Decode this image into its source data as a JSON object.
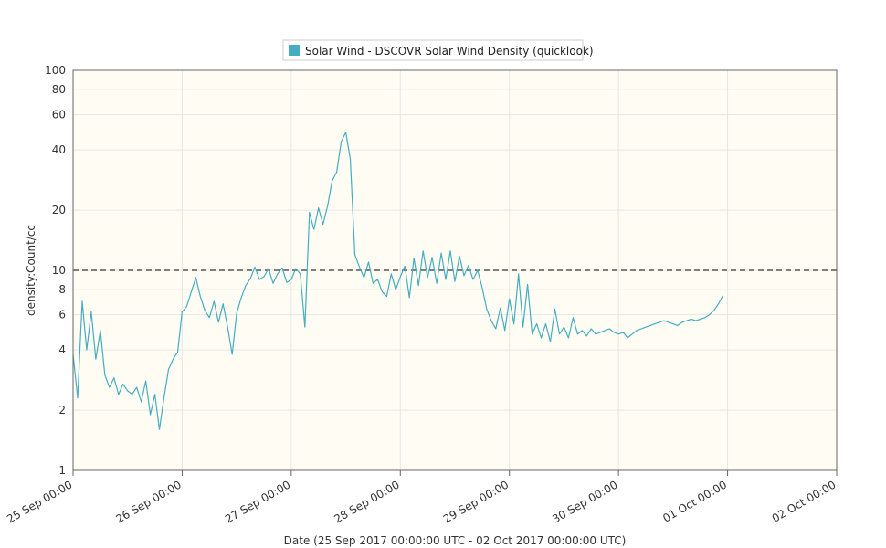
{
  "chart_data": {
    "type": "line",
    "title": "",
    "xlabel": "Date (25 Sep 2017 00:00:00 UTC - 02 Oct 2017 00:00:00 UTC)",
    "ylabel": "density:Count/cc",
    "yscale": "log",
    "ylim": [
      1,
      100
    ],
    "xlim": [
      "2017-09-25T00:00",
      "2017-10-02T00:00"
    ],
    "x_tick_labels": [
      "25 Sep 00:00",
      "26 Sep 00:00",
      "27 Sep 00:00",
      "28 Sep 00:00",
      "29 Sep 00:00",
      "30 Sep 00:00",
      "01 Oct 00:00",
      "02 Oct 00:00"
    ],
    "y_ticks": [
      1,
      2,
      4,
      6,
      8,
      10,
      20,
      40,
      60,
      80,
      100
    ],
    "y_tick_labels": [
      "1",
      "2",
      "4",
      "6",
      "8",
      "10",
      "20",
      "40",
      "60",
      "80",
      "100"
    ],
    "reference_lines": [
      10,
      1
    ],
    "grid": true,
    "legend_position": "top-center",
    "plot_background": "#fffcf3",
    "line_color": "#44adc1",
    "series": [
      {
        "name": "Solar Wind - DSCOVR Solar Wind Density (quicklook)",
        "x": [
          "2017-09-25T00:00",
          "2017-09-25T01:00",
          "2017-09-25T02:00",
          "2017-09-25T03:00",
          "2017-09-25T04:00",
          "2017-09-25T05:00",
          "2017-09-25T06:00",
          "2017-09-25T07:00",
          "2017-09-25T08:00",
          "2017-09-25T09:00",
          "2017-09-25T10:00",
          "2017-09-25T11:00",
          "2017-09-25T12:00",
          "2017-09-25T13:00",
          "2017-09-25T14:00",
          "2017-09-25T15:00",
          "2017-09-25T16:00",
          "2017-09-25T17:00",
          "2017-09-25T18:00",
          "2017-09-25T19:00",
          "2017-09-25T20:00",
          "2017-09-25T21:00",
          "2017-09-25T22:00",
          "2017-09-25T23:00",
          "2017-09-26T00:00",
          "2017-09-26T01:00",
          "2017-09-26T02:00",
          "2017-09-26T03:00",
          "2017-09-26T04:00",
          "2017-09-26T05:00",
          "2017-09-26T06:00",
          "2017-09-26T07:00",
          "2017-09-26T08:00",
          "2017-09-26T09:00",
          "2017-09-26T10:00",
          "2017-09-26T11:00",
          "2017-09-26T12:00",
          "2017-09-26T13:00",
          "2017-09-26T14:00",
          "2017-09-26T15:00",
          "2017-09-26T16:00",
          "2017-09-26T17:00",
          "2017-09-26T18:00",
          "2017-09-26T19:00",
          "2017-09-26T20:00",
          "2017-09-26T21:00",
          "2017-09-26T22:00",
          "2017-09-26T23:00",
          "2017-09-27T00:00",
          "2017-09-27T01:00",
          "2017-09-27T02:00",
          "2017-09-27T03:00",
          "2017-09-27T04:00",
          "2017-09-27T05:00",
          "2017-09-27T06:00",
          "2017-09-27T07:00",
          "2017-09-27T08:00",
          "2017-09-27T09:00",
          "2017-09-27T10:00",
          "2017-09-27T11:00",
          "2017-09-27T12:00",
          "2017-09-27T13:00",
          "2017-09-27T14:00",
          "2017-09-27T15:00",
          "2017-09-27T16:00",
          "2017-09-27T17:00",
          "2017-09-27T18:00",
          "2017-09-27T19:00",
          "2017-09-27T20:00",
          "2017-09-27T21:00",
          "2017-09-27T22:00",
          "2017-09-27T23:00",
          "2017-09-28T00:00",
          "2017-09-28T01:00",
          "2017-09-28T02:00",
          "2017-09-28T03:00",
          "2017-09-28T04:00",
          "2017-09-28T05:00",
          "2017-09-28T06:00",
          "2017-09-28T07:00",
          "2017-09-28T08:00",
          "2017-09-28T09:00",
          "2017-09-28T10:00",
          "2017-09-28T11:00",
          "2017-09-28T12:00",
          "2017-09-28T13:00",
          "2017-09-28T14:00",
          "2017-09-28T15:00",
          "2017-09-28T16:00",
          "2017-09-28T17:00",
          "2017-09-28T18:00",
          "2017-09-28T19:00",
          "2017-09-28T20:00",
          "2017-09-28T21:00",
          "2017-09-28T22:00",
          "2017-09-28T23:00",
          "2017-09-29T00:00",
          "2017-09-29T01:00",
          "2017-09-29T02:00",
          "2017-09-29T03:00",
          "2017-09-29T04:00",
          "2017-09-29T05:00",
          "2017-09-29T06:00",
          "2017-09-29T07:00",
          "2017-09-29T08:00",
          "2017-09-29T09:00",
          "2017-09-29T10:00",
          "2017-09-29T11:00",
          "2017-09-29T12:00",
          "2017-09-29T13:00",
          "2017-09-29T14:00",
          "2017-09-29T15:00",
          "2017-09-29T16:00",
          "2017-09-29T17:00",
          "2017-09-29T18:00",
          "2017-09-29T19:00",
          "2017-09-29T20:00",
          "2017-09-29T21:00",
          "2017-09-29T22:00",
          "2017-09-29T23:00",
          "2017-09-30T00:00",
          "2017-09-30T01:00",
          "2017-09-30T02:00",
          "2017-09-30T03:00",
          "2017-09-30T04:00",
          "2017-09-30T05:00",
          "2017-09-30T06:00",
          "2017-09-30T07:00",
          "2017-09-30T08:00",
          "2017-09-30T09:00",
          "2017-09-30T10:00",
          "2017-09-30T11:00",
          "2017-09-30T12:00",
          "2017-09-30T13:00",
          "2017-09-30T14:00",
          "2017-09-30T15:00",
          "2017-09-30T16:00",
          "2017-09-30T17:00",
          "2017-09-30T18:00",
          "2017-09-30T19:00",
          "2017-09-30T20:00",
          "2017-09-30T21:00",
          "2017-09-30T22:00",
          "2017-09-30T23:00"
        ],
        "values": [
          3.8,
          2.3,
          7.0,
          4.0,
          6.2,
          3.6,
          5.0,
          3.0,
          2.6,
          2.9,
          2.4,
          2.7,
          2.5,
          2.4,
          2.6,
          2.2,
          2.8,
          1.9,
          2.4,
          1.6,
          2.3,
          3.2,
          3.6,
          3.9,
          6.2,
          6.6,
          7.8,
          9.2,
          7.4,
          6.3,
          5.8,
          7.0,
          5.5,
          6.8,
          5.2,
          3.8,
          6.1,
          7.3,
          8.4,
          9.1,
          10.4,
          9.0,
          9.3,
          10.2,
          8.6,
          9.6,
          10.3,
          8.7,
          9.0,
          10.2,
          9.6,
          5.2,
          19.5,
          16.0,
          20.5,
          17.0,
          21.0,
          28.0,
          31.0,
          44.0,
          49.0,
          36.0,
          12.0,
          10.4,
          9.2,
          11.0,
          8.6,
          9.0,
          7.8,
          7.4,
          9.6,
          8.0,
          9.3,
          10.5,
          7.3,
          11.5,
          8.4,
          12.5,
          9.2,
          11.6,
          8.6,
          12.2,
          9.0,
          12.5,
          8.8,
          11.8,
          9.4,
          10.6,
          9.0,
          10.0,
          8.2,
          6.4,
          5.6,
          5.1,
          6.5,
          5.0,
          7.2,
          5.4,
          9.6,
          5.2,
          8.5,
          4.8,
          5.4,
          4.6,
          5.4,
          4.4,
          6.4,
          4.8,
          5.2,
          4.6,
          5.8,
          4.8,
          5.0,
          4.7,
          5.1,
          4.8,
          4.9,
          5.0,
          5.1,
          4.9,
          4.8,
          4.9,
          4.6,
          4.8,
          5.0,
          5.1,
          5.2,
          5.3,
          5.4,
          5.5,
          5.6,
          5.5,
          5.4,
          5.3,
          5.5,
          5.6,
          5.7,
          5.6,
          5.7,
          5.8,
          6.0,
          6.3,
          6.8,
          7.5
        ]
      }
    ]
  }
}
